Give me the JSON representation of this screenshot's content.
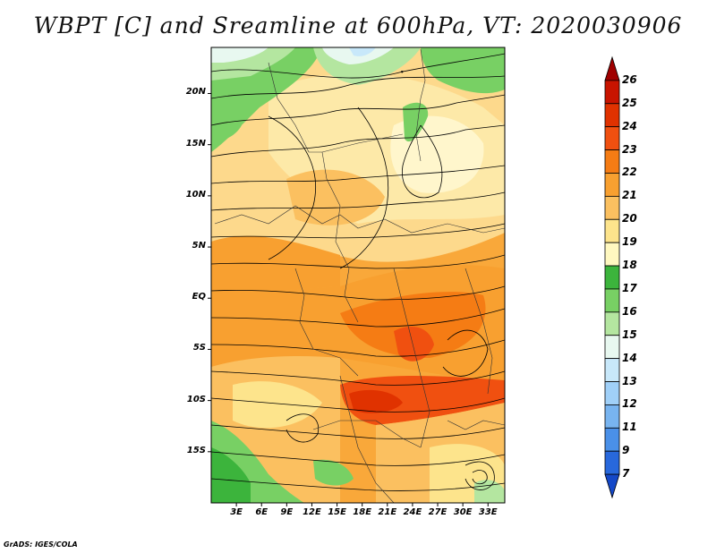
{
  "title": "WBPT [C] and Sreamline at 600hPa, VT: 2020030906",
  "credit": "GrADS: IGES/COLA",
  "map": {
    "lon_range": [
      0,
      35
    ],
    "lat_range": [
      -20,
      24.5
    ],
    "lat_ticks": [
      {
        "label": "20N",
        "lat": 20
      },
      {
        "label": "15N",
        "lat": 15
      },
      {
        "label": "10N",
        "lat": 10
      },
      {
        "label": "5N",
        "lat": 5
      },
      {
        "label": "EQ",
        "lat": 0
      },
      {
        "label": "5S",
        "lat": -5
      },
      {
        "label": "10S",
        "lat": -10
      },
      {
        "label": "15S",
        "lat": -15
      }
    ],
    "lon_ticks": [
      {
        "label": "3E",
        "lon": 3
      },
      {
        "label": "6E",
        "lon": 6
      },
      {
        "label": "9E",
        "lon": 9
      },
      {
        "label": "12E",
        "lon": 12
      },
      {
        "label": "15E",
        "lon": 15
      },
      {
        "label": "18E",
        "lon": 18
      },
      {
        "label": "21E",
        "lon": 21
      },
      {
        "label": "24E",
        "lon": 24
      },
      {
        "label": "27E",
        "lon": 27
      },
      {
        "label": "30E",
        "lon": 30
      },
      {
        "label": "33E",
        "lon": 33
      }
    ]
  },
  "colorbar": {
    "labels": [
      "26",
      "25",
      "24",
      "23",
      "22",
      "21",
      "20",
      "19",
      "18",
      "17",
      "16",
      "15",
      "14",
      "13",
      "12",
      "11",
      "9",
      "7"
    ],
    "colors": [
      "#a00000",
      "#c81400",
      "#e03200",
      "#f05010",
      "#f57c14",
      "#f8a030",
      "#fbc060",
      "#fde48c",
      "#fff8c0",
      "#3cb43c",
      "#78d064",
      "#b4e6a0",
      "#e8f8f0",
      "#c8e8fa",
      "#a0d0f8",
      "#78b4f0",
      "#4a90e8",
      "#2868dc",
      "#1448c8"
    ]
  }
}
